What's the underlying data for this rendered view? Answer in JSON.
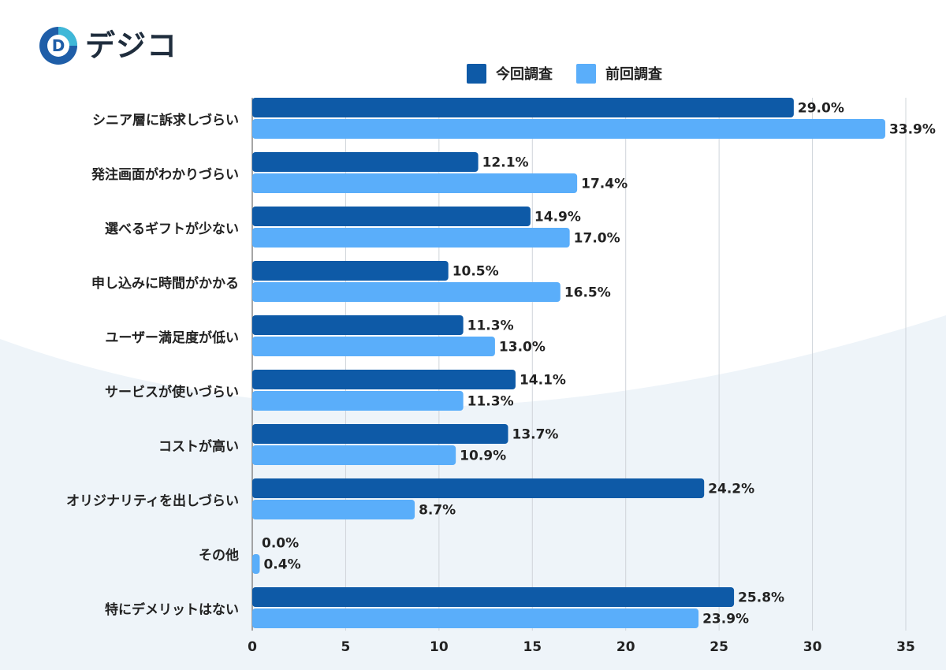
{
  "logo": {
    "text": "デジコ",
    "mark_letter": "D"
  },
  "colors": {
    "current": "#0e5aa7",
    "previous": "#5aaefa",
    "grid": "#cfd4da",
    "label": "#222222",
    "wave": "#eef4f9"
  },
  "chart_data": {
    "type": "bar",
    "orientation": "horizontal",
    "categories": [
      "シニア層に訴求しづらい",
      "発注画面がわかりづらい",
      "選べるギフトが少ない",
      "申し込みに時間がかかる",
      "ユーザー満足度が低い",
      "サービスが使いづらい",
      "コストが高い",
      "オリジナリティを出しづらい",
      "その他",
      "特にデメリットはない"
    ],
    "series": [
      {
        "name": "今回調査",
        "values": [
          29.0,
          12.1,
          14.9,
          10.5,
          11.3,
          14.1,
          13.7,
          24.2,
          0.0,
          25.8
        ],
        "labels": [
          "29.0%",
          "12.1%",
          "14.9%",
          "10.5%",
          "11.3%",
          "14.1%",
          "13.7%",
          "24.2%",
          "0.0%",
          "25.8%"
        ]
      },
      {
        "name": "前回調査",
        "values": [
          33.9,
          17.4,
          17.0,
          16.5,
          13.0,
          11.3,
          10.9,
          8.7,
          0.4,
          23.9
        ],
        "labels": [
          "33.9%",
          "17.4%",
          "17.0%",
          "16.5%",
          "13.0%",
          "11.3%",
          "10.9%",
          "8.7%",
          "0.4%",
          "23.9%"
        ]
      }
    ],
    "xlim": [
      0,
      35
    ],
    "xticks": [
      "0",
      "5",
      "10",
      "15",
      "20",
      "25",
      "30",
      "35"
    ],
    "grid": true,
    "legend": "top-center"
  }
}
